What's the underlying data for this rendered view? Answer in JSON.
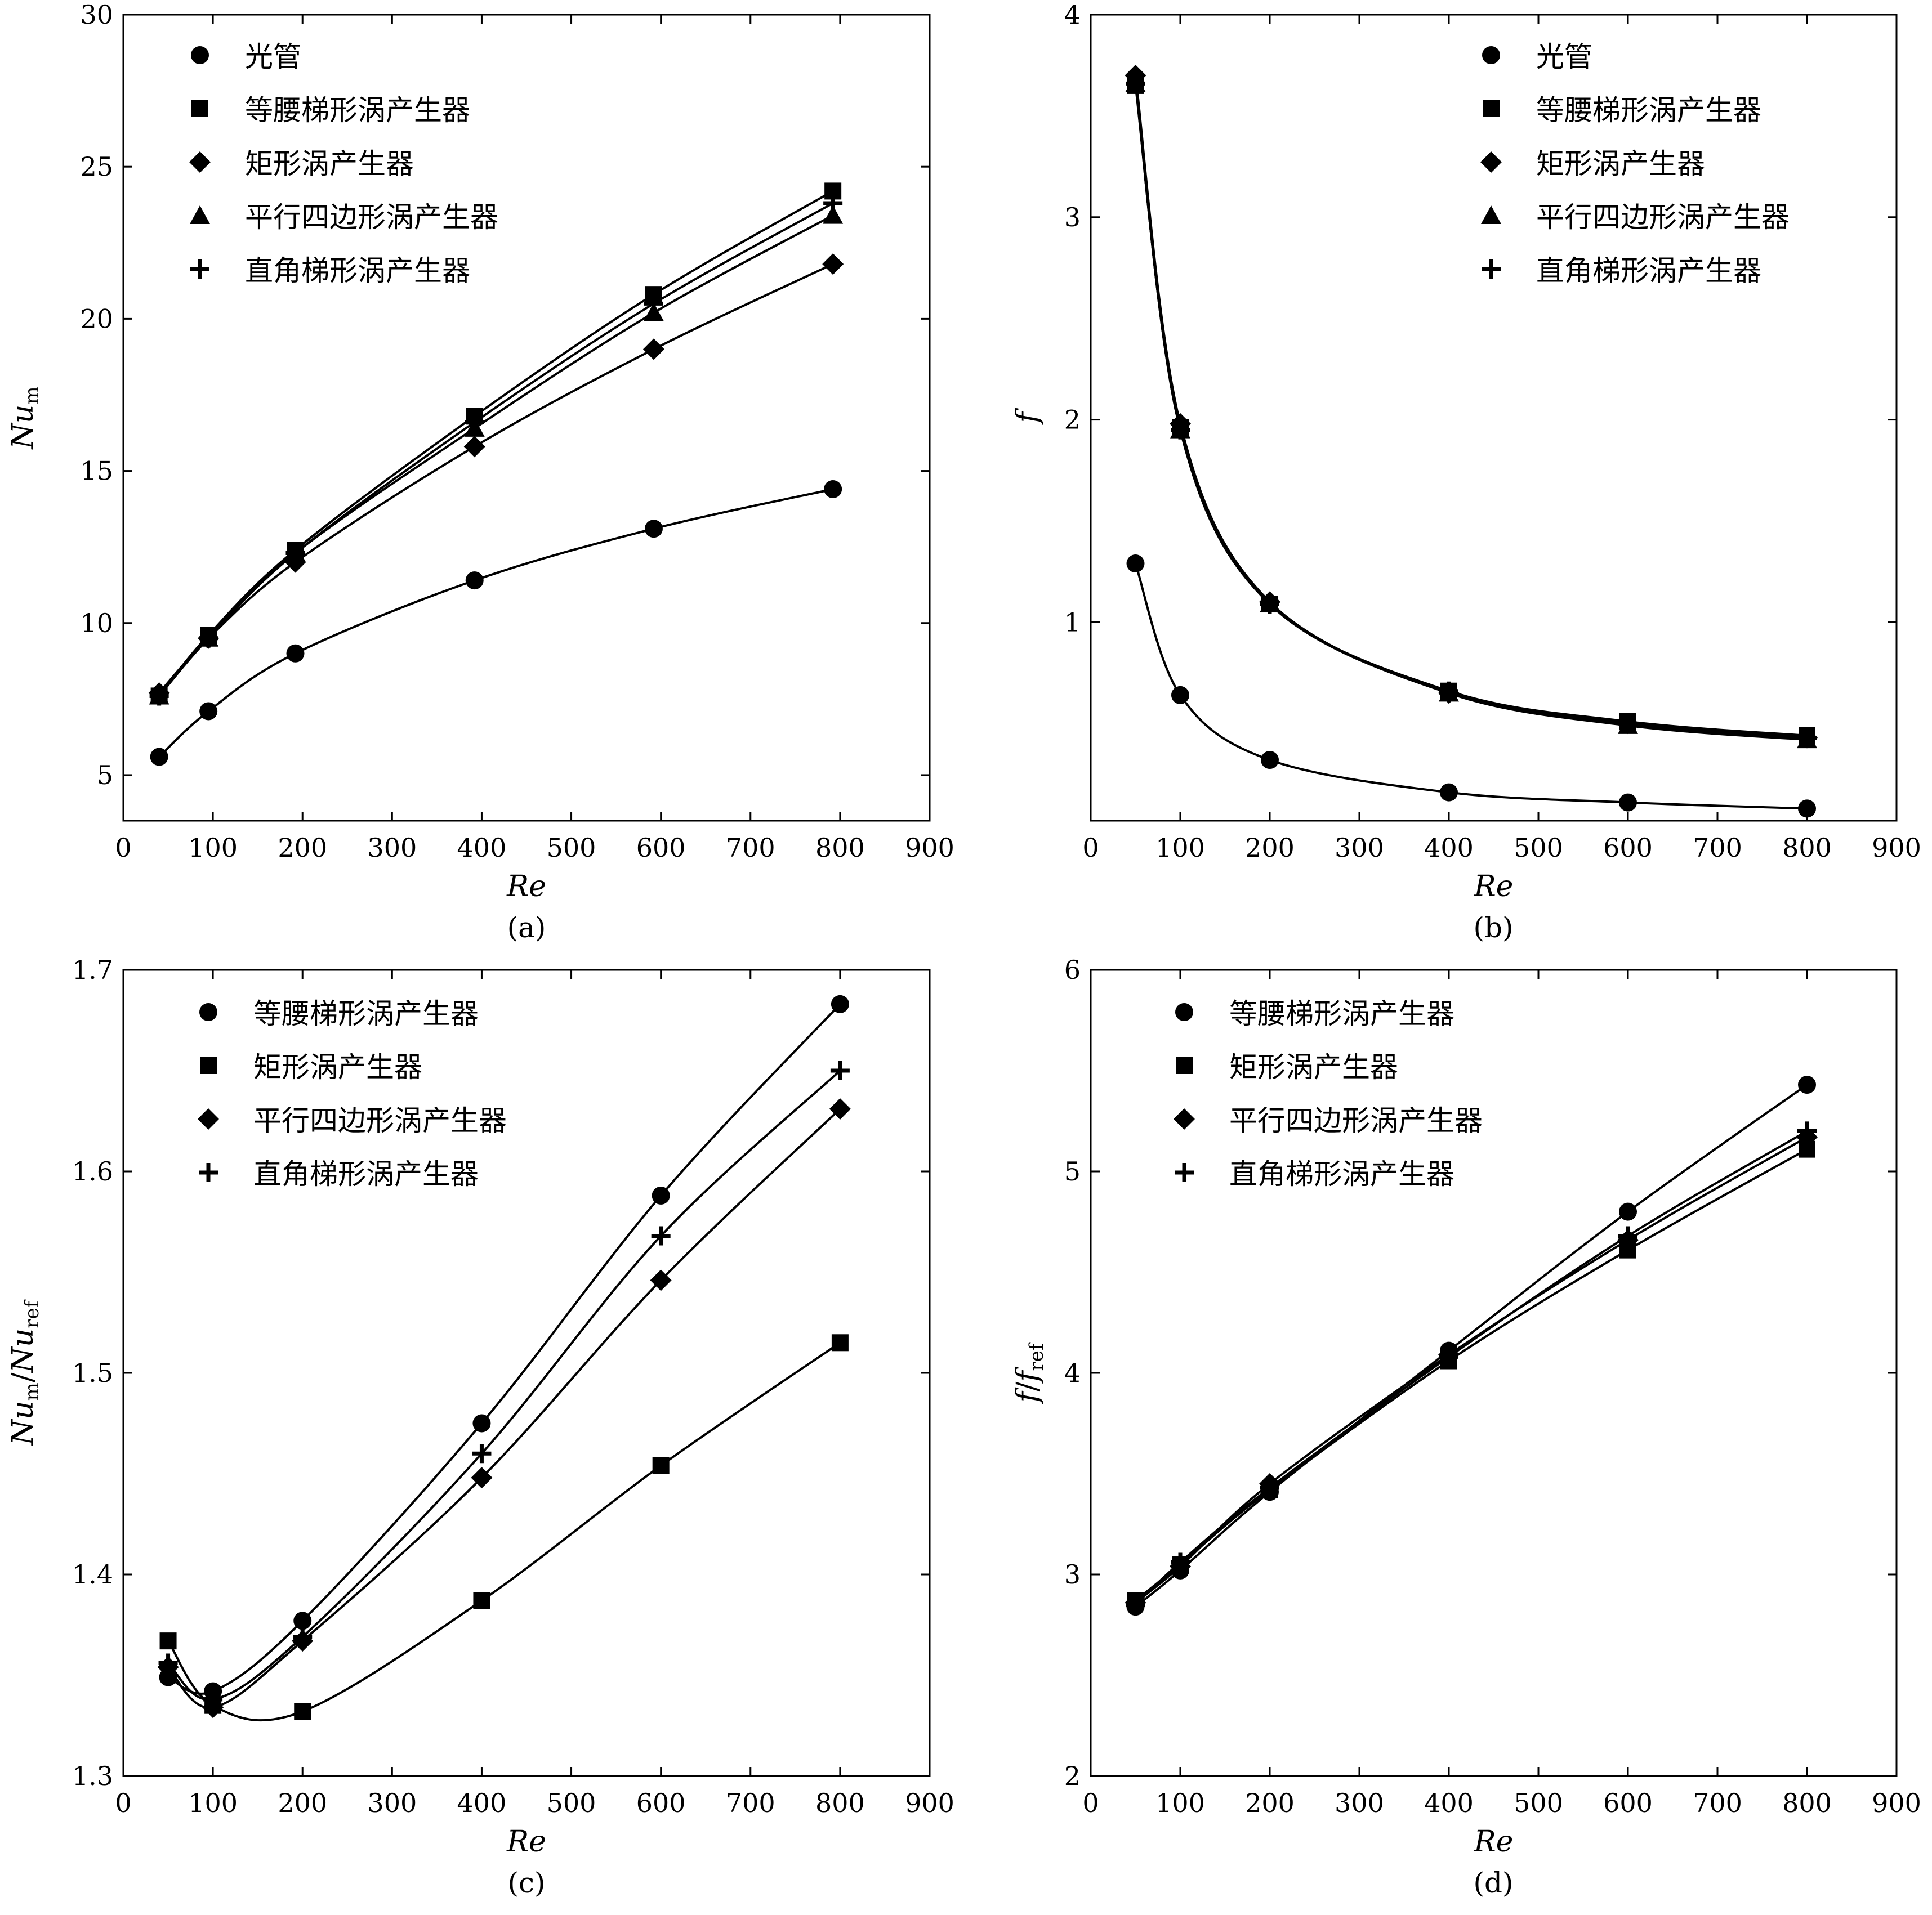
{
  "chart_data": [
    {
      "type": "line",
      "caption": "(a)",
      "xlabel": "Re",
      "ylabel_main": "Nu",
      "ylabel_sub": "m",
      "xlim": [
        0,
        900
      ],
      "ylim": [
        3.5,
        30
      ],
      "xticks": [
        0,
        100,
        200,
        300,
        400,
        500,
        600,
        700,
        800,
        900
      ],
      "yticks": [
        5,
        10,
        15,
        20,
        25,
        30
      ],
      "legend": "top-left",
      "series": [
        {
          "name": "光管",
          "marker": "circle",
          "x": [
            40,
            95,
            192,
            392,
            592,
            792
          ],
          "y": [
            5.6,
            7.1,
            9.0,
            11.4,
            13.1,
            14.4
          ]
        },
        {
          "name": "等腰梯形涡产生器",
          "marker": "square",
          "x": [
            40,
            95,
            192,
            392,
            592,
            792
          ],
          "y": [
            7.6,
            9.6,
            12.4,
            16.8,
            20.8,
            24.2
          ]
        },
        {
          "name": "矩形涡产生器",
          "marker": "diamond",
          "x": [
            40,
            95,
            192,
            392,
            592,
            792
          ],
          "y": [
            7.7,
            9.5,
            12.0,
            15.8,
            19.0,
            21.8
          ]
        },
        {
          "name": "平行四边形涡产生器",
          "marker": "triangle",
          "x": [
            40,
            95,
            192,
            392,
            592,
            792
          ],
          "y": [
            7.6,
            9.5,
            12.3,
            16.4,
            20.2,
            23.4
          ]
        },
        {
          "name": "直角梯形涡产生器",
          "marker": "plus",
          "x": [
            40,
            95,
            192,
            392,
            592,
            792
          ],
          "y": [
            7.6,
            9.5,
            12.3,
            16.6,
            20.5,
            23.8
          ]
        }
      ]
    },
    {
      "type": "line",
      "caption": "(b)",
      "xlabel": "Re",
      "ylabel_main": "f",
      "ylabel_sub": "",
      "xlim": [
        0,
        900
      ],
      "ylim": [
        0.02,
        4
      ],
      "xticks": [
        0,
        100,
        200,
        300,
        400,
        500,
        600,
        700,
        800,
        900
      ],
      "yticks": [
        1,
        2,
        3,
        4
      ],
      "legend": "top-right",
      "series": [
        {
          "name": "光管",
          "marker": "circle",
          "x": [
            50,
            100,
            200,
            400,
            600,
            800
          ],
          "y": [
            1.29,
            0.64,
            0.32,
            0.16,
            0.11,
            0.08
          ]
        },
        {
          "name": "等腰梯形涡产生器",
          "marker": "square",
          "x": [
            50,
            100,
            200,
            400,
            600,
            800
          ],
          "y": [
            3.65,
            1.96,
            1.09,
            0.66,
            0.51,
            0.44
          ]
        },
        {
          "name": "矩形涡产生器",
          "marker": "diamond",
          "x": [
            50,
            100,
            200,
            400,
            600,
            800
          ],
          "y": [
            3.7,
            1.98,
            1.1,
            0.65,
            0.5,
            0.43
          ]
        },
        {
          "name": "平行四边形涡产生器",
          "marker": "triangle",
          "x": [
            50,
            100,
            200,
            400,
            600,
            800
          ],
          "y": [
            3.66,
            1.95,
            1.09,
            0.65,
            0.49,
            0.42
          ]
        },
        {
          "name": "直角梯形涡产生器",
          "marker": "plus",
          "x": [
            50,
            100,
            200,
            400,
            600,
            800
          ],
          "y": [
            3.66,
            1.95,
            1.09,
            0.66,
            0.5,
            0.43
          ]
        }
      ]
    },
    {
      "type": "line",
      "caption": "(c)",
      "xlabel": "Re",
      "ylabel_main": "Nu",
      "ylabel_sub": "m",
      "ylabel_mid": "/",
      "ylabel_main2": "Nu",
      "ylabel_sub2": "ref",
      "xlim": [
        0,
        900
      ],
      "ylim": [
        1.3,
        1.7
      ],
      "xticks": [
        0,
        100,
        200,
        300,
        400,
        500,
        600,
        700,
        800,
        900
      ],
      "yticks": [
        1.3,
        1.4,
        1.5,
        1.6,
        1.7
      ],
      "legend": "top-left",
      "series": [
        {
          "name": "等腰梯形涡产生器",
          "marker": "circle",
          "x": [
            50,
            100,
            200,
            400,
            600,
            800
          ],
          "y": [
            1.349,
            1.342,
            1.377,
            1.475,
            1.588,
            1.683
          ]
        },
        {
          "name": "矩形涡产生器",
          "marker": "square",
          "x": [
            50,
            100,
            200,
            400,
            600,
            800
          ],
          "y": [
            1.367,
            1.335,
            1.332,
            1.387,
            1.454,
            1.515
          ]
        },
        {
          "name": "平行四边形涡产生器",
          "marker": "diamond",
          "x": [
            50,
            100,
            200,
            400,
            600,
            800
          ],
          "y": [
            1.354,
            1.334,
            1.367,
            1.448,
            1.546,
            1.631
          ]
        },
        {
          "name": "直角梯形涡产生器",
          "marker": "plus",
          "x": [
            50,
            100,
            200,
            400,
            600,
            800
          ],
          "y": [
            1.356,
            1.338,
            1.369,
            1.46,
            1.568,
            1.65
          ]
        }
      ]
    },
    {
      "type": "line",
      "caption": "(d)",
      "xlabel": "Re",
      "ylabel_main": "f",
      "ylabel_sub": "",
      "ylabel_mid": "/",
      "ylabel_main2": "f",
      "ylabel_sub2": "ref",
      "xlim": [
        0,
        900
      ],
      "ylim": [
        2,
        6
      ],
      "xticks": [
        0,
        100,
        200,
        300,
        400,
        500,
        600,
        700,
        800,
        900
      ],
      "yticks": [
        2,
        3,
        4,
        5,
        6
      ],
      "legend": "top-left",
      "series": [
        {
          "name": "等腰梯形涡产生器",
          "marker": "circle",
          "x": [
            50,
            100,
            200,
            400,
            600,
            800
          ],
          "y": [
            2.84,
            3.02,
            3.41,
            4.11,
            4.8,
            5.43
          ]
        },
        {
          "name": "矩形涡产生器",
          "marker": "square",
          "x": [
            50,
            100,
            200,
            400,
            600,
            800
          ],
          "y": [
            2.87,
            3.05,
            3.42,
            4.06,
            4.61,
            5.11
          ]
        },
        {
          "name": "平行四边形涡产生器",
          "marker": "diamond",
          "x": [
            50,
            100,
            200,
            400,
            600,
            800
          ],
          "y": [
            2.86,
            3.04,
            3.45,
            4.09,
            4.66,
            5.17
          ]
        },
        {
          "name": "直角梯形涡产生器",
          "marker": "plus",
          "x": [
            50,
            100,
            200,
            400,
            600,
            800
          ],
          "y": [
            2.85,
            3.06,
            3.43,
            4.08,
            4.68,
            5.2
          ]
        }
      ]
    }
  ]
}
